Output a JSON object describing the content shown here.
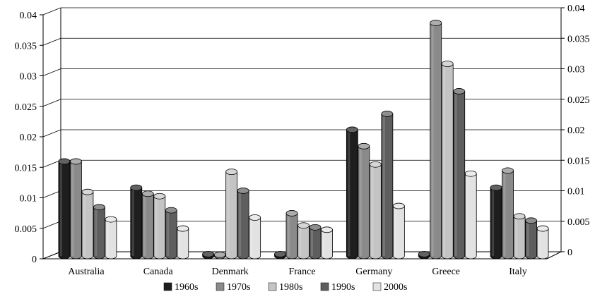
{
  "chart_data": {
    "type": "bar",
    "title": "",
    "xlabel": "",
    "ylabel": "",
    "ylim": [
      0,
      0.04
    ],
    "yticks": [
      0,
      0.005,
      0.01,
      0.015,
      0.02,
      0.025,
      0.03,
      0.035,
      0.04
    ],
    "ytick_labels": [
      "0",
      "0.005",
      "0.01",
      "0.015",
      "0.02",
      "0.025",
      "0.03",
      "0.035",
      "0.04"
    ],
    "categories": [
      "Australia",
      "Canada",
      "Denmark",
      "France",
      "Germany",
      "Greece",
      "Italy"
    ],
    "series": [
      {
        "name": "1960s",
        "color": "#1e1e1e",
        "values": [
          0.0155,
          0.0112,
          0.0003,
          0.0003,
          0.0207,
          0.0003,
          0.0112
        ]
      },
      {
        "name": "1970s",
        "color": "#8a8a8a",
        "values": [
          0.0155,
          0.0102,
          0.0002,
          0.007,
          0.018,
          0.0382,
          0.014
        ]
      },
      {
        "name": "1980s",
        "color": "#c4c4c4",
        "values": [
          0.0105,
          0.0098,
          0.0138,
          0.005,
          0.015,
          0.0315,
          0.0065
        ]
      },
      {
        "name": "1990s",
        "color": "#5e5e5e",
        "values": [
          0.008,
          0.0075,
          0.0107,
          0.0047,
          0.0233,
          0.027,
          0.0058
        ]
      },
      {
        "name": "2000s",
        "color": "#e2e2e2",
        "values": [
          0.006,
          0.0045,
          0.0063,
          0.0043,
          0.0082,
          0.0135,
          0.0045
        ]
      }
    ],
    "grid": true,
    "legend": "bottom",
    "secondary_yaxis": "right"
  }
}
